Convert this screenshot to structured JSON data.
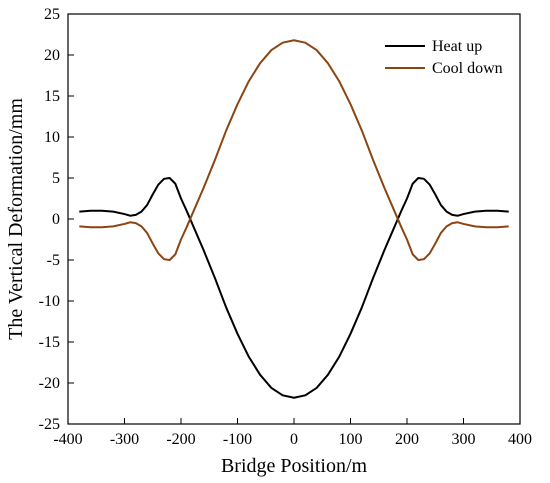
{
  "chart_data": {
    "type": "line",
    "title": "",
    "xlabel": "Bridge Position/m",
    "ylabel": "The Vertical Deformation/mm",
    "xlim": [
      -400,
      400
    ],
    "ylim": [
      -25,
      25
    ],
    "xticks": [
      -400,
      -300,
      -200,
      -100,
      0,
      100,
      200,
      300,
      400
    ],
    "yticks": [
      -25,
      -20,
      -15,
      -10,
      -5,
      0,
      5,
      10,
      15,
      20,
      25
    ],
    "grid": false,
    "legend_position": "top-right",
    "series": [
      {
        "name": "Heat up",
        "color": "#000000",
        "x": [
          -380,
          -360,
          -340,
          -320,
          -300,
          -290,
          -280,
          -270,
          -260,
          -250,
          -240,
          -230,
          -220,
          -210,
          -200,
          -190,
          -180,
          -160,
          -140,
          -120,
          -100,
          -80,
          -60,
          -40,
          -20,
          0,
          20,
          40,
          60,
          80,
          100,
          120,
          140,
          160,
          180,
          190,
          200,
          210,
          220,
          230,
          240,
          250,
          260,
          270,
          280,
          290,
          300,
          320,
          340,
          360,
          380
        ],
        "values": [
          0.9,
          1.0,
          1.0,
          0.9,
          0.6,
          0.4,
          0.5,
          0.9,
          1.7,
          3.0,
          4.2,
          4.9,
          5.0,
          4.3,
          2.5,
          1.0,
          -0.6,
          -3.8,
          -7.2,
          -10.8,
          -14.0,
          -16.8,
          -19.0,
          -20.6,
          -21.5,
          -21.8,
          -21.5,
          -20.6,
          -19.0,
          -16.8,
          -14.0,
          -10.8,
          -7.2,
          -3.8,
          -0.6,
          1.0,
          2.5,
          4.3,
          5.0,
          4.9,
          4.2,
          3.0,
          1.7,
          0.9,
          0.5,
          0.4,
          0.6,
          0.9,
          1.0,
          1.0,
          0.9
        ]
      },
      {
        "name": "Cool down",
        "color": "#8B4513",
        "x": [
          -380,
          -360,
          -340,
          -320,
          -300,
          -290,
          -280,
          -270,
          -260,
          -250,
          -240,
          -230,
          -220,
          -210,
          -200,
          -190,
          -180,
          -160,
          -140,
          -120,
          -100,
          -80,
          -60,
          -40,
          -20,
          0,
          20,
          40,
          60,
          80,
          100,
          120,
          140,
          160,
          180,
          190,
          200,
          210,
          220,
          230,
          240,
          250,
          260,
          270,
          280,
          290,
          300,
          320,
          340,
          360,
          380
        ],
        "values": [
          -0.9,
          -1.0,
          -1.0,
          -0.9,
          -0.6,
          -0.4,
          -0.5,
          -0.9,
          -1.7,
          -3.0,
          -4.2,
          -4.9,
          -5.0,
          -4.3,
          -2.5,
          -1.0,
          0.6,
          3.8,
          7.2,
          10.8,
          14.0,
          16.8,
          19.0,
          20.6,
          21.5,
          21.8,
          21.5,
          20.6,
          19.0,
          16.8,
          14.0,
          10.8,
          7.2,
          3.8,
          0.6,
          -1.0,
          -2.5,
          -4.3,
          -5.0,
          -4.9,
          -4.2,
          -3.0,
          -1.7,
          -0.9,
          -0.5,
          -0.4,
          -0.6,
          -0.9,
          -1.0,
          -1.0,
          -0.9
        ]
      }
    ]
  }
}
